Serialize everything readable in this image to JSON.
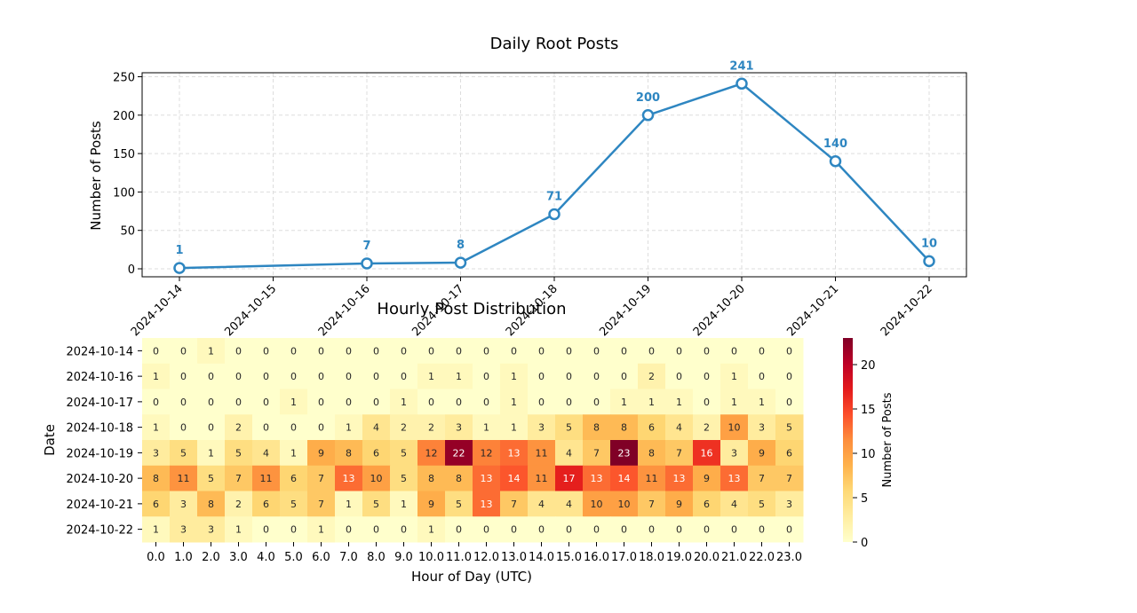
{
  "chart_data": [
    {
      "type": "line",
      "title": "Daily Root Posts",
      "xlabel": "",
      "ylabel": "Number of Posts",
      "x": [
        "2024-10-14",
        "2024-10-16",
        "2024-10-17",
        "2024-10-18",
        "2024-10-19",
        "2024-10-20",
        "2024-10-21",
        "2024-10-22"
      ],
      "values": [
        1,
        7,
        8,
        71,
        200,
        241,
        140,
        10
      ],
      "x_ticks": [
        "2024-10-14",
        "2024-10-15",
        "2024-10-16",
        "2024-10-17",
        "2024-10-18",
        "2024-10-19",
        "2024-10-20",
        "2024-10-21",
        "2024-10-22"
      ],
      "y_ticks": [
        0,
        50,
        100,
        150,
        200,
        250
      ],
      "ylim": [
        -10,
        252
      ],
      "grid": true,
      "color": "#2e86c1"
    },
    {
      "type": "heatmap",
      "title": "Hourly Post Distribution",
      "xlabel": "Hour of Day (UTC)",
      "ylabel": "Date",
      "x_ticks": [
        "0.0",
        "1.0",
        "2.0",
        "3.0",
        "4.0",
        "5.0",
        "6.0",
        "7.0",
        "8.0",
        "9.0",
        "10.0",
        "11.0",
        "12.0",
        "13.0",
        "14.0",
        "15.0",
        "16.0",
        "17.0",
        "18.0",
        "19.0",
        "20.0",
        "21.0",
        "22.0",
        "23.0"
      ],
      "y_ticks": [
        "2024-10-14",
        "2024-10-16",
        "2024-10-17",
        "2024-10-18",
        "2024-10-19",
        "2024-10-20",
        "2024-10-21",
        "2024-10-22"
      ],
      "values": [
        [
          0,
          0,
          1,
          0,
          0,
          0,
          0,
          0,
          0,
          0,
          0,
          0,
          0,
          0,
          0,
          0,
          0,
          0,
          0,
          0,
          0,
          0,
          0,
          0
        ],
        [
          1,
          0,
          0,
          0,
          0,
          0,
          0,
          0,
          0,
          0,
          1,
          1,
          0,
          1,
          0,
          0,
          0,
          0,
          2,
          0,
          0,
          1,
          0,
          0
        ],
        [
          0,
          0,
          0,
          0,
          0,
          1,
          0,
          0,
          0,
          1,
          0,
          0,
          0,
          1,
          0,
          0,
          0,
          1,
          1,
          1,
          0,
          1,
          1,
          0
        ],
        [
          1,
          0,
          0,
          2,
          0,
          0,
          0,
          1,
          4,
          2,
          2,
          3,
          1,
          1,
          3,
          5,
          8,
          8,
          6,
          4,
          2,
          10,
          3,
          5
        ],
        [
          3,
          5,
          1,
          5,
          4,
          1,
          9,
          8,
          6,
          5,
          12,
          22,
          12,
          13,
          11,
          4,
          7,
          23,
          8,
          7,
          16,
          3,
          9,
          6
        ],
        [
          8,
          11,
          5,
          7,
          11,
          6,
          7,
          13,
          10,
          5,
          8,
          8,
          13,
          14,
          11,
          17,
          13,
          14,
          11,
          13,
          9,
          13,
          7,
          7
        ],
        [
          6,
          3,
          8,
          2,
          6,
          5,
          7,
          1,
          5,
          1,
          9,
          5,
          13,
          7,
          4,
          4,
          10,
          10,
          7,
          9,
          6,
          4,
          5,
          3
        ],
        [
          1,
          3,
          3,
          1,
          0,
          0,
          1,
          0,
          0,
          0,
          1,
          0,
          0,
          0,
          0,
          0,
          0,
          0,
          0,
          0,
          0,
          0,
          0,
          0
        ]
      ],
      "colorbar": {
        "label": "Number of Posts",
        "ticks": [
          0,
          5,
          10,
          15,
          20
        ],
        "vmin": 0,
        "vmax": 23,
        "colormap": "YlOrRd"
      }
    }
  ]
}
